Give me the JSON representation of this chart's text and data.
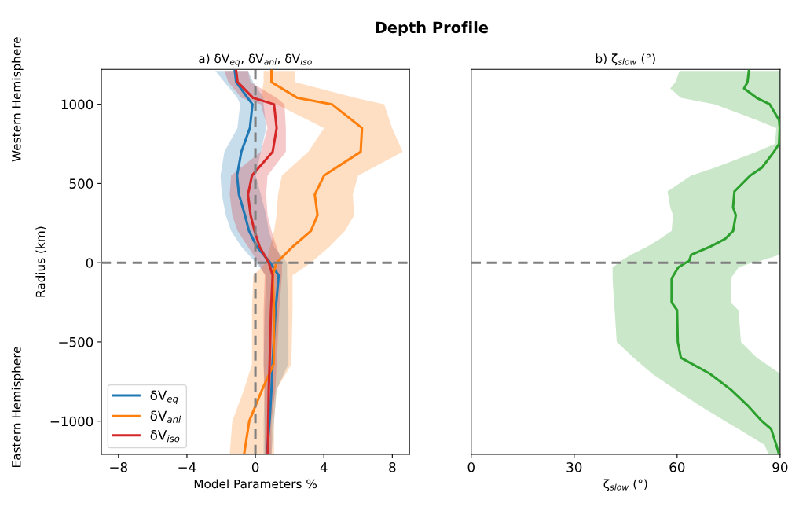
{
  "chart_data": [
    {
      "type": "line",
      "orientation": "horizontal",
      "title": "a) δV$_{eq}$, δV$_{ani}$, δV$_{iso}$",
      "xlabel": "Model Parameters %",
      "ylabel": "Radius (km)",
      "annotations": [
        "Depth Profile",
        "Western Hemisphere",
        "Eastern Hemisphere"
      ],
      "xlim": [
        -9,
        9
      ],
      "xticks": [
        -8,
        -4,
        0,
        4,
        8
      ],
      "ylim": [
        -1210,
        1220
      ],
      "yticks": [
        -1000,
        -500,
        0,
        500,
        1000
      ],
      "legend": "bottom left",
      "grid": false,
      "ref_lines": [
        {
          "axis": "y",
          "value": 0,
          "color": "#808080",
          "line_style": "dashed"
        },
        {
          "axis": "x",
          "value": 0,
          "color": "#808080",
          "line_style": "dashed"
        }
      ],
      "series": [
        {
          "name": "δV$_{eq}$",
          "color": "#1f77b4",
          "x": [
            1210,
            1140,
            1040,
            1000,
            850,
            700,
            550,
            430,
            300,
            200,
            100,
            0,
            -80,
            -300,
            -640,
            -800,
            -1000,
            -1210
          ],
          "values": [
            -1.2,
            -1.12,
            -0.45,
            -0.17,
            -0.32,
            -0.82,
            -1.07,
            -0.96,
            -0.61,
            -0.37,
            0.09,
            0.87,
            1.36,
            1.18,
            1.0,
            0.94,
            0.83,
            0.67
          ],
          "lower": [
            -2.34,
            -1.81,
            -1.05,
            -0.89,
            -1.05,
            -1.81,
            -2.04,
            -1.96,
            -1.73,
            -1.42,
            -0.81,
            0.02,
            0.63,
            0.55,
            0.48,
            0.55,
            0.48,
            0.48
          ],
          "upper": [
            -0.43,
            -0.13,
            0.48,
            0.48,
            0.63,
            0.32,
            0.02,
            0.32,
            0.63,
            0.78,
            1.09,
            1.85,
            1.85,
            1.93,
            1.93,
            1.24,
            1.09,
            0.94
          ]
        },
        {
          "name": "δV$_{ani}$",
          "color": "#ff7f0e",
          "x": [
            1210,
            1140,
            1040,
            1000,
            850,
            700,
            550,
            430,
            300,
            200,
            100,
            0,
            -80,
            -300,
            -640,
            -800,
            -1000,
            -1210
          ],
          "values": [
            0.94,
            0.94,
            2.46,
            4.47,
            6.23,
            6.15,
            4.01,
            3.47,
            3.63,
            3.24,
            2.17,
            1.24,
            1.01,
            1.09,
            1.07,
            0.4,
            -0.36,
            -0.66
          ],
          "lower": [
            0.48,
            0.48,
            0.32,
            1.24,
            4.01,
            3.09,
            1.55,
            1.32,
            1.24,
            1.09,
            0.86,
            0.63,
            -0.13,
            -0.2,
            -0.2,
            -0.66,
            -1.35,
            -1.5
          ],
          "upper": [
            2.32,
            2.32,
            5.85,
            7.53,
            7.99,
            8.6,
            6.0,
            5.69,
            5.77,
            5.23,
            4.32,
            3.24,
            2.17,
            2.17,
            2.1,
            1.24,
            1.09,
            1.09
          ]
        },
        {
          "name": "δV$_{iso}$",
          "color": "#d62728",
          "x": [
            1210,
            1140,
            1040,
            1000,
            850,
            700,
            550,
            430,
            300,
            200,
            100,
            0,
            -80,
            -300,
            -640,
            -800,
            -1000,
            -1210
          ],
          "values": [
            -1.12,
            -1.04,
            -0.13,
            1.09,
            1.24,
            1.01,
            -0.2,
            -0.43,
            -0.28,
            -0.05,
            0.25,
            0.78,
            1.01,
            0.91,
            0.83,
            0.78,
            0.75,
            0.72
          ],
          "lower": [
            -1.81,
            -1.58,
            -0.81,
            0.32,
            0.71,
            0.32,
            -1.42,
            -1.5,
            -1.35,
            -1.04,
            -0.43,
            0.17,
            0.55,
            0.48,
            0.48,
            0.51,
            0.55,
            0.55
          ],
          "upper": [
            -0.43,
            -0.28,
            1.24,
            1.7,
            1.78,
            1.78,
            0.71,
            0.63,
            0.71,
            0.94,
            1.24,
            1.55,
            1.55,
            1.39,
            1.24,
            1.17,
            0.94,
            0.94
          ]
        }
      ]
    },
    {
      "type": "line",
      "orientation": "horizontal",
      "title": "b) ζ$_{slow}$ (°)",
      "xlabel": "ζ$_{slow}$ (°)",
      "xlim": [
        0,
        90
      ],
      "xticks": [
        0,
        30,
        60,
        90
      ],
      "ylim": [
        -1210,
        1220
      ],
      "tick_labels": "x",
      "grid": false,
      "ref_lines": [
        {
          "axis": "y",
          "value": 0,
          "color": "#808080",
          "line_style": "dashed"
        }
      ],
      "series": [
        {
          "color": "#2ca02c",
          "x": [
            1210,
            1140,
            1100,
            1040,
            1000,
            900,
            850,
            750,
            700,
            600,
            550,
            450,
            350,
            300,
            200,
            150,
            100,
            50,
            10,
            0,
            -30,
            -100,
            -250,
            -300,
            -500,
            -600,
            -700,
            -800,
            -900,
            -1000,
            -1050,
            -1150,
            -1210
          ],
          "values": [
            80.9,
            80.5,
            79.5,
            83.2,
            87.0,
            89.7,
            89.9,
            89.7,
            88.2,
            84.7,
            81.3,
            76.7,
            76.3,
            77.1,
            76.3,
            74.0,
            69.5,
            64.1,
            63.5,
            62.5,
            60.3,
            58.4,
            58.4,
            60.0,
            60.2,
            61.1,
            69.5,
            75.6,
            80.5,
            84.7,
            87.4,
            88.9,
            89.7
          ],
          "lower": [
            60.7,
            59.5,
            58.0,
            61.1,
            71.0,
            83.2,
            88.9,
            88.5,
            83.2,
            71.0,
            64.1,
            57.2,
            58.0,
            58.8,
            58.4,
            55.0,
            51.2,
            46.6,
            43.5,
            43.0,
            41.2,
            41.2,
            41.6,
            41.8,
            42.4,
            47.3,
            52.7,
            59.5,
            66.4,
            74.0,
            77.9,
            85.5,
            86.6
          ],
          "upper": [
            90,
            90,
            90,
            90,
            90,
            90,
            90,
            90,
            90,
            90,
            90,
            90,
            90,
            90,
            90,
            90,
            90,
            90,
            84.0,
            81.7,
            77.9,
            75.6,
            75.6,
            77.9,
            78.6,
            83.2,
            90,
            90,
            90,
            90,
            90,
            90,
            90
          ]
        }
      ]
    }
  ]
}
